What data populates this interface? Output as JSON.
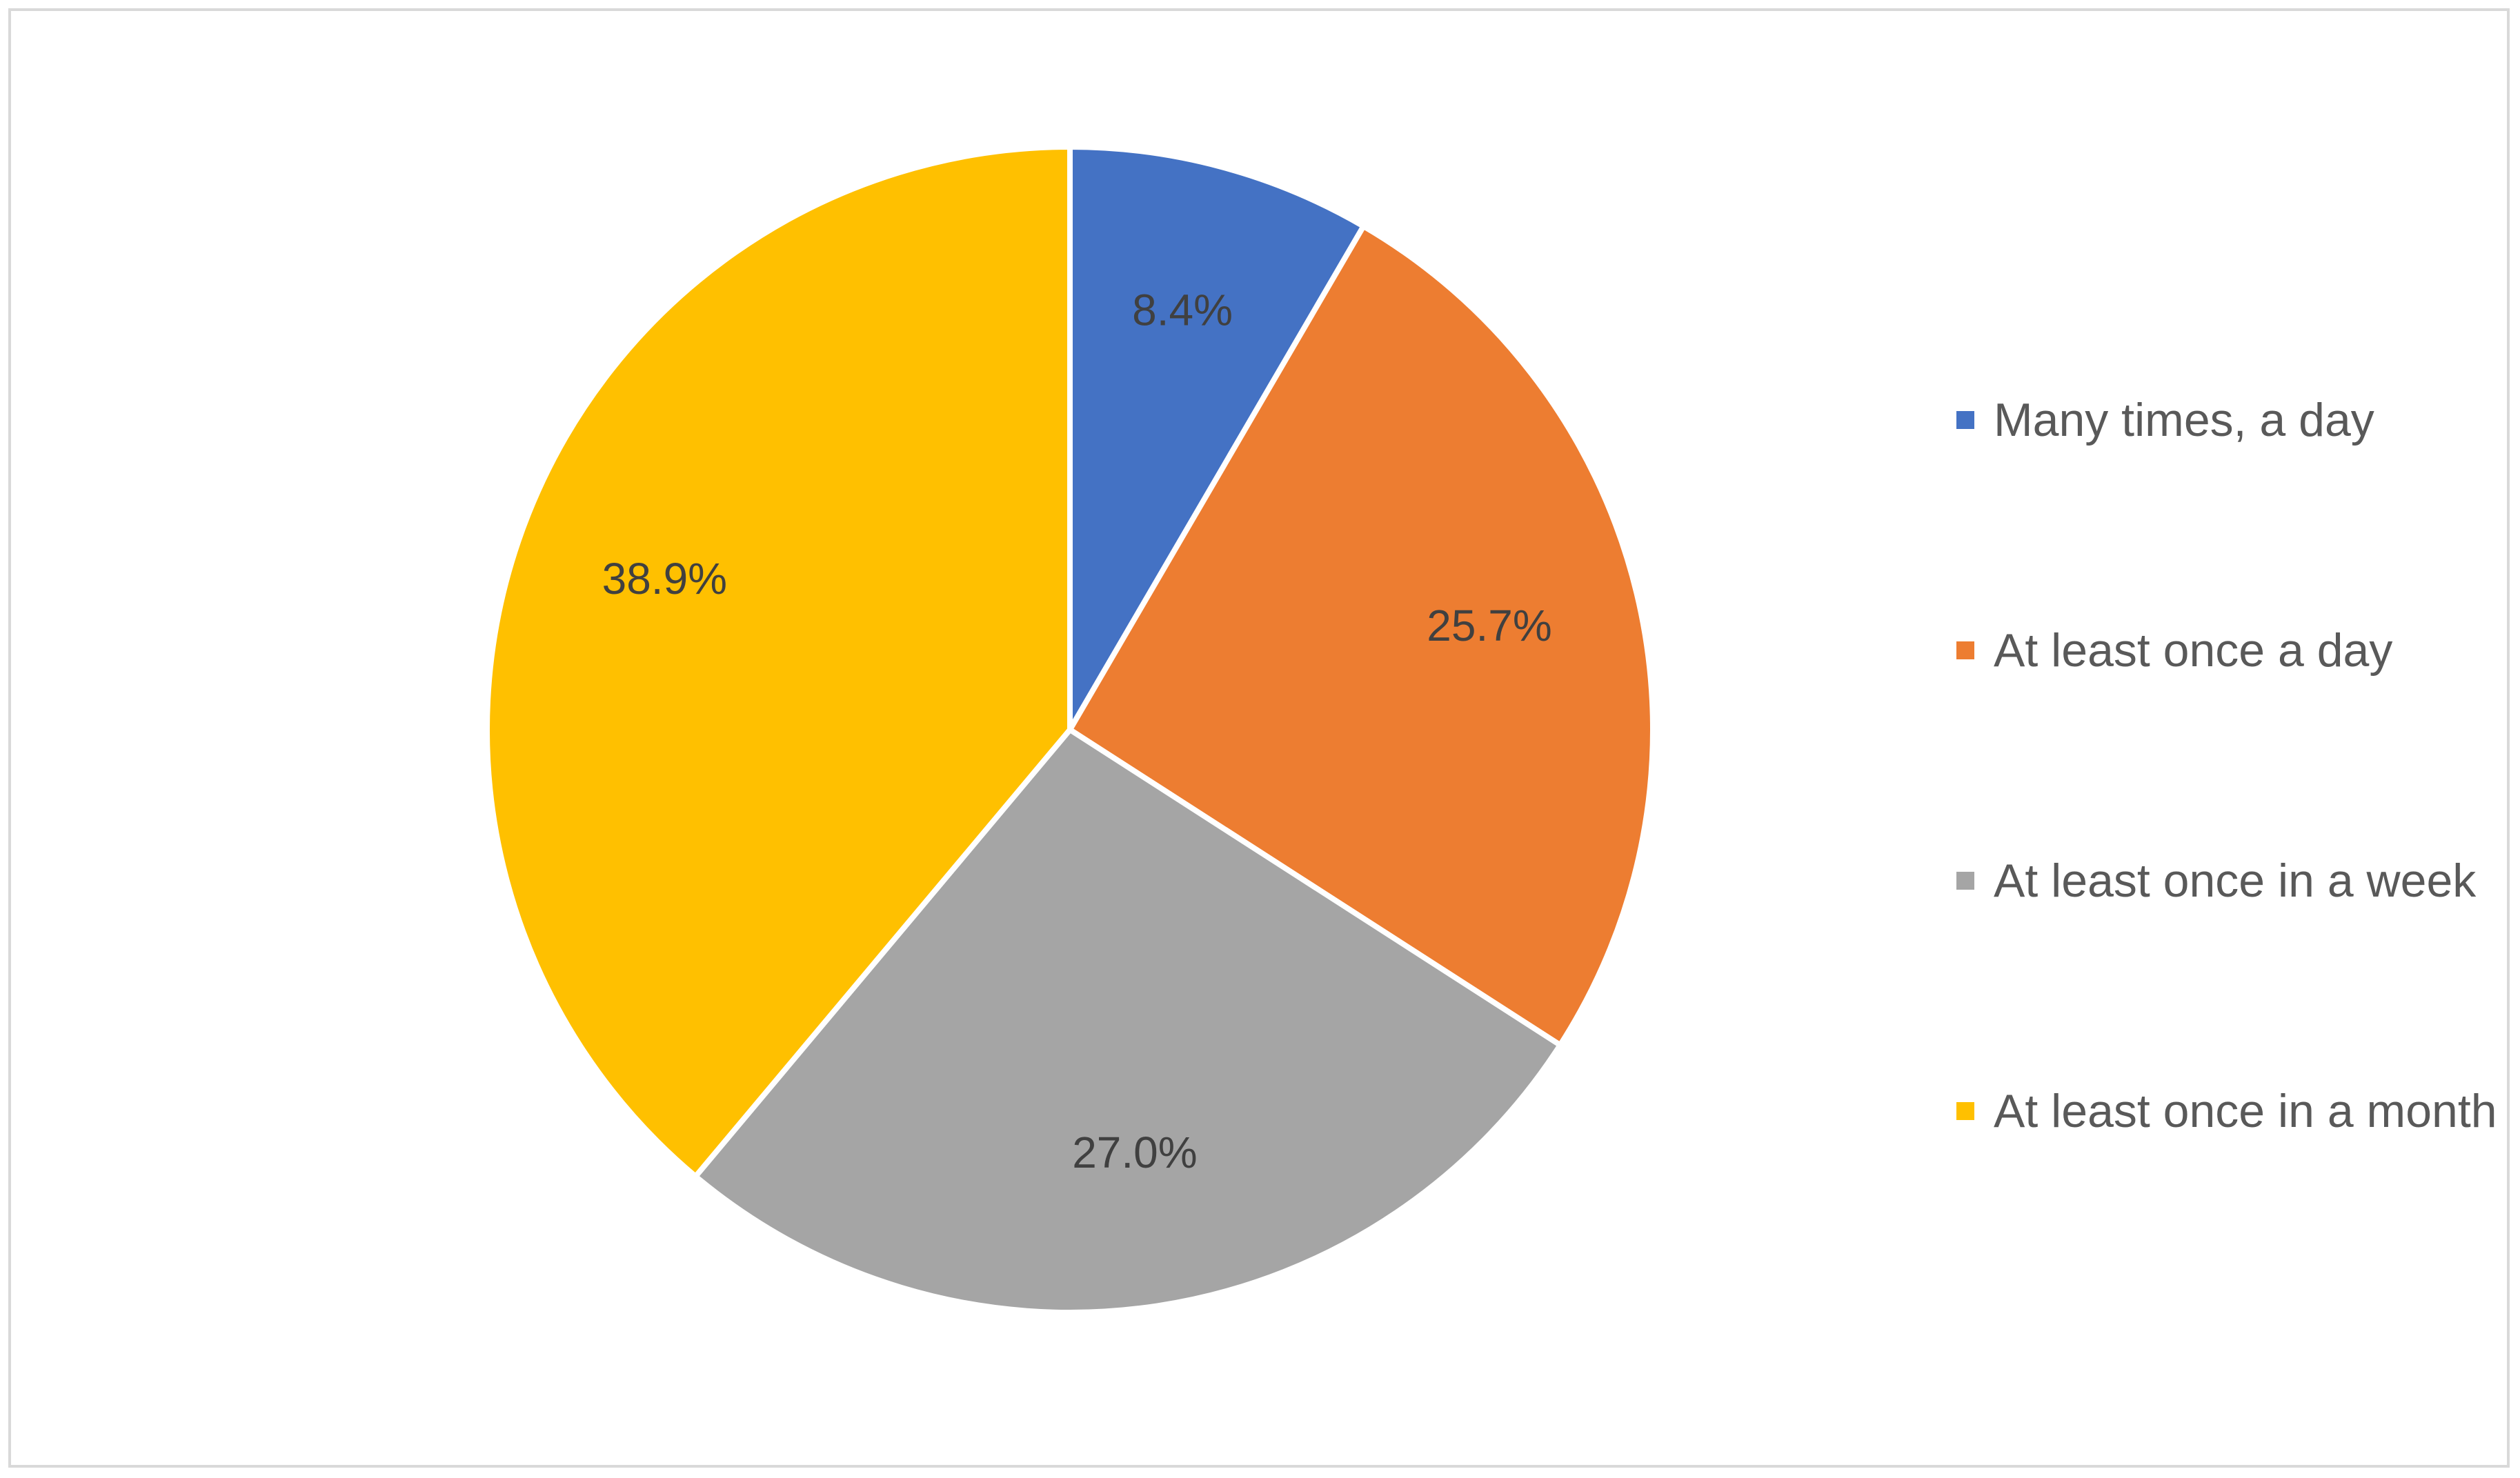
{
  "chart_data": {
    "type": "pie",
    "categories": [
      "Many times, a day",
      "At least once a day",
      "At least once in a week",
      "At least once in a month"
    ],
    "values": [
      8.4,
      25.7,
      27.0,
      38.9
    ],
    "value_labels": [
      "8.4%",
      "25.7%",
      "27.0%",
      "38.9%"
    ],
    "colors": [
      "#4472C4",
      "#ED7D31",
      "#A5A5A5",
      "#FFC000"
    ],
    "start_angle_deg": 0,
    "direction": "clockwise",
    "legend_position": "right"
  }
}
